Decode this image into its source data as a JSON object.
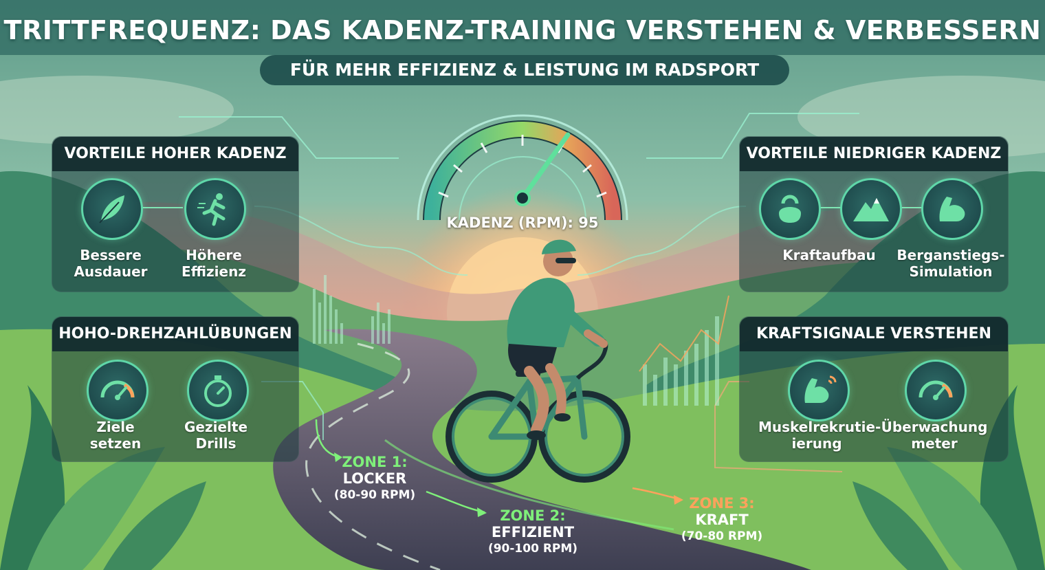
{
  "header": {
    "title": "TRITTFREQUENZ: DAS KADENZ-TRAINING VERSTEHEN & VERBESSERN",
    "subtitle": "FÜR MEHR EFFIZIENZ & LEISTUNG IM RADSPORT"
  },
  "gauge": {
    "label": "KADENZ (RPM): 95",
    "value": 95
  },
  "panels": {
    "high_cadence": {
      "title": "VORTEILE HOHER KADENZ",
      "items": [
        {
          "icon": "feather-icon",
          "label_line1": "Bessere",
          "label_line2": "Ausdauer"
        },
        {
          "icon": "running-person-icon",
          "label_line1": "Höhere",
          "label_line2": "Effizienz"
        }
      ]
    },
    "drills": {
      "title": "HOHO-DREHZAHLÜBUNGEN",
      "items": [
        {
          "icon": "speedometer-icon",
          "label_line1": "Ziele",
          "label_line2": "setzen"
        },
        {
          "icon": "stopwatch-icon",
          "label_line1": "Gezielte",
          "label_line2": "Drills"
        }
      ]
    },
    "low_cadence": {
      "title": "VORTEILE NIEDRIGER KADENZ",
      "items": [
        {
          "icon": "kettlebell-icon",
          "label_line1": "Kraftaufbau",
          "label_line2": ""
        },
        {
          "icon": "mountain-icon",
          "label_line1": "",
          "label_line2": ""
        },
        {
          "icon": "flexed-arm-icon",
          "label_line1": "Berganstiegs-",
          "label_line2": "Simulation"
        }
      ]
    },
    "power_signals": {
      "title": "KRAFTSIGNALE VERSTEHEN",
      "items": [
        {
          "icon": "muscle-signal-icon",
          "label_line1": "Muskelrekrutie-",
          "label_line2": "ierung"
        },
        {
          "icon": "power-meter-icon",
          "label_line1": "Überwachung",
          "label_line2": "meter"
        }
      ]
    }
  },
  "zones": [
    {
      "name": "ZONE 1:",
      "desc": "LOCKER",
      "range": "(80-90 RPM)",
      "color": "#7ff07a"
    },
    {
      "name": "ZONE 2:",
      "desc": "EFFIZIENT",
      "range": "(90-100 RPM)",
      "color": "#7ff07a"
    },
    {
      "name": "ZONE 3:",
      "desc": "KRAFT",
      "range": "(70-80 RPM)",
      "color": "#ffa25c"
    }
  ],
  "colors": {
    "accent_green": "#5fd7a9",
    "zone_green": "#7ff07a",
    "zone_orange": "#ffa25c",
    "panel_dark": "#122a2e"
  }
}
